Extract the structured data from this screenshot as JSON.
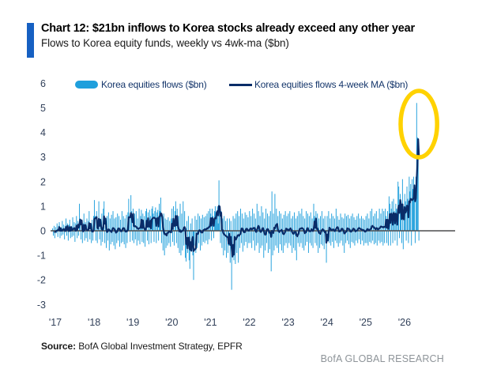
{
  "header": {
    "title": "Chart 12: $21bn inflows to Korea stocks already exceed any other year",
    "subtitle": "Flows to Korea equity funds, weekly vs 4wk-ma ($bn)"
  },
  "legend": {
    "bar": {
      "label": "Korea equities flows ($bn)"
    },
    "line": {
      "label": "Korea equities flows 4-week MA ($bn)"
    }
  },
  "footer": {
    "source_label": "Source:",
    "source_rest": " BofA Global Investment Strategy, EPFR",
    "brand": "BofA GLOBAL RESEARCH"
  },
  "colors": {
    "accent_bar": "#1660C2",
    "bar_blue": "#1F9FDC",
    "ma_navy": "#0A2C68",
    "highlight_yellow": "#FFD200",
    "tick_label": "#32415A",
    "zero_line": "#4D4D4F",
    "legend_text": "#15366B",
    "brand_gray": "#8E9499"
  },
  "chart_data": {
    "type": "bar",
    "title": "Chart 12: $21bn inflows to Korea stocks already exceed any other year",
    "subtitle": "Flows to Korea equity funds, weekly vs 4wk-ma ($bn)",
    "xlabel": "",
    "ylabel": "",
    "ylim": [
      -3,
      6
    ],
    "y_ticks": [
      6,
      5,
      4,
      3,
      2,
      1,
      0,
      -1,
      -2,
      -3
    ],
    "x_tick_labels": [
      "'17",
      "'18",
      "'19",
      "'20",
      "'21",
      "'22",
      "'23",
      "'24",
      "'25",
      "'26"
    ],
    "x_tick_years": [
      2017,
      2018,
      2019,
      2020,
      2021,
      2022,
      2023,
      2024,
      2025,
      2026
    ],
    "grid": false,
    "legend_position": "top",
    "annotation": {
      "shape": "ellipse-highlight",
      "target": "record 2026 weekly inflow spike",
      "center_year": 2026.37,
      "center_value": 4.34,
      "radius_years": 0.47,
      "radius_value": 1.35,
      "peak_weekly_value": 5.2
    },
    "series": [
      {
        "name": "Korea equities flows ($bn)",
        "type": "bar",
        "frequency": "weekly",
        "start_year": 2016.92,
        "step_years": 0.01923,
        "values": [
          0.1,
          -0.2,
          0.2,
          -0.3,
          0.15,
          -0.1,
          0.3,
          -0.25,
          0.2,
          0.35,
          -0.3,
          0.15,
          -0.2,
          0.4,
          -0.15,
          0.25,
          -0.35,
          0.2,
          0.5,
          -0.2,
          0.3,
          -0.4,
          0.25,
          0.45,
          -0.3,
          0.2,
          -0.25,
          0.55,
          -0.2,
          0.35,
          -0.45,
          0.3,
          0.6,
          -0.3,
          0.4,
          -0.2,
          1.1,
          0.5,
          -0.35,
          0.45,
          -0.5,
          0.3,
          0.7,
          -0.4,
          0.35,
          -0.3,
          0.5,
          -0.45,
          0.4,
          0.8,
          -0.35,
          0.3,
          -0.5,
          0.45,
          -0.4,
          0.6,
          1.25,
          0.6,
          -0.4,
          0.8,
          -0.5,
          0.45,
          1.2,
          -0.35,
          0.5,
          -0.6,
          0.7,
          -0.45,
          0.9,
          1.2,
          -0.5,
          0.4,
          -0.7,
          0.6,
          -0.4,
          0.75,
          -0.8,
          0.5,
          -0.55,
          0.65,
          -0.45,
          0.8,
          -0.6,
          0.5,
          -0.75,
          0.55,
          -0.5,
          0.7,
          -0.4,
          0.6,
          -0.65,
          0.45,
          -0.5,
          0.8,
          -0.45,
          0.6,
          -0.55,
          0.5,
          -0.7,
          0.65,
          -0.5,
          0.75,
          1.3,
          0.6,
          -0.45,
          1.45,
          0.8,
          -0.4,
          0.9,
          -0.5,
          0.7,
          -0.35,
          0.8,
          -0.6,
          0.5,
          -0.4,
          0.9,
          -0.55,
          0.6,
          0.85,
          -0.45,
          0.7,
          -0.5,
          0.6,
          -0.65,
          0.8,
          0.9,
          -0.4,
          0.75,
          -0.55,
          0.85,
          0.6,
          -0.5,
          0.9,
          1.0,
          0.7,
          -0.45,
          0.8,
          0.95,
          -0.5,
          0.75,
          0.85,
          -0.4,
          1.1,
          0.8,
          1.35,
          -0.5,
          0.6,
          -0.8,
          0.7,
          -1.0,
          0.5,
          -0.7,
          0.45,
          -0.6,
          0.55,
          -0.5,
          0.4,
          -0.65,
          0.5,
          0.9,
          -0.45,
          1.0,
          -0.6,
          0.8,
          1.2,
          -0.5,
          0.9,
          -0.7,
          0.6,
          -0.9,
          1.1,
          -1.0,
          0.7,
          -0.8,
          1.2,
          -0.6,
          0.8,
          -1.1,
          -1.25,
          0.4,
          -0.9,
          0.6,
          -1.2,
          -1.55,
          0.3,
          -0.8,
          0.5,
          -1.0,
          -2.0,
          -0.6,
          0.6,
          -0.9,
          0.45,
          -0.7,
          0.7,
          -0.5,
          0.6,
          -0.8,
          0.5,
          -0.6,
          0.65,
          -0.45,
          0.55,
          -0.5,
          0.6,
          -0.4,
          0.7,
          -0.55,
          0.8,
          -0.35,
          0.9,
          0.7,
          -0.4,
          0.9,
          0.6,
          -0.3,
          0.8,
          1.0,
          0.5,
          0.7,
          1.0,
          0.3,
          2.05,
          0.6,
          -0.5,
          0.8,
          -0.7,
          0.5,
          -1.0,
          0.6,
          -0.8,
          0.4,
          -1.1,
          0.5,
          -0.9,
          -0.6,
          0.5,
          -1.3,
          0.4,
          -2.4,
          -0.9,
          0.6,
          -1.2,
          0.5,
          -1.35,
          0.7,
          -0.9,
          0.8,
          -1.3,
          0.6,
          -0.7,
          0.9,
          -0.5,
          0.7,
          -0.85,
          0.5,
          -0.6,
          0.75,
          -0.45,
          0.65,
          -0.7,
          0.55,
          -0.5,
          0.8,
          -0.5,
          0.6,
          -0.7,
          0.9,
          -0.4,
          0.7,
          -0.8,
          0.5,
          -0.6,
          1.1,
          -0.5,
          0.8,
          -0.9,
          0.6,
          -0.7,
          1.0,
          -0.6,
          0.75,
          -1.1,
          0.5,
          -0.8,
          0.9,
          -0.5,
          0.7,
          -0.9,
          0.6,
          -0.75,
          0.8,
          -1.65,
          1.6,
          -1.0,
          0.7,
          -0.8,
          1.5,
          -0.6,
          0.9,
          -0.7,
          0.6,
          -0.9,
          0.8,
          -0.55,
          0.7,
          -0.8,
          0.5,
          -0.9,
          0.65,
          -0.6,
          0.8,
          -0.5,
          0.6,
          -0.7,
          0.7,
          -0.5,
          0.8,
          -0.6,
          0.5,
          -0.9,
          0.6,
          -0.7,
          0.75,
          -0.8,
          0.5,
          -1.2,
          0.6,
          -0.5,
          0.8,
          -0.65,
          0.7,
          -0.5,
          0.9,
          -0.7,
          0.6,
          -0.8,
          0.5,
          -0.6,
          0.8,
          -0.45,
          0.7,
          -0.9,
          0.6,
          -0.5,
          0.75,
          -0.6,
          0.5,
          -0.7,
          1.1,
          0.6,
          -0.5,
          0.8,
          -0.6,
          0.7,
          -0.9,
          0.5,
          -0.7,
          0.6,
          -0.55,
          0.8,
          -0.6,
          0.5,
          -0.75,
          0.6,
          -0.5,
          -1.3,
          0.6,
          -0.4,
          0.8,
          -0.5,
          0.5,
          -0.6,
          0.7,
          -0.45,
          0.6,
          -0.7,
          0.5,
          -0.4,
          0.9,
          -0.5,
          0.6,
          -0.65,
          0.45,
          -0.5,
          0.7,
          -0.4,
          0.55,
          -0.6,
          0.5,
          -0.9,
          0.7,
          -0.5,
          0.6,
          -0.4,
          0.65,
          -0.55,
          0.5,
          -0.7,
          0.6,
          -0.45,
          0.7,
          -0.5,
          0.55,
          -0.6,
          0.45,
          -0.4,
          0.6,
          -0.5,
          0.7,
          -0.35,
          0.5,
          -0.55,
          0.6,
          -0.4,
          0.5,
          -0.6,
          0.45,
          -0.5,
          0.6,
          -0.5,
          0.7,
          -0.6,
          0.5,
          -0.45,
          0.8,
          -0.5,
          0.9,
          -0.4,
          0.6,
          -0.55,
          0.7,
          -0.5,
          0.8,
          -0.6,
          0.5,
          -0.4,
          0.9,
          -0.5,
          0.7,
          -0.45,
          0.9,
          -0.6,
          0.8,
          -0.5,
          0.9,
          0.6,
          -0.5,
          0.8,
          -0.6,
          1.4,
          1.1,
          -0.6,
          0.9,
          1.2,
          -0.5,
          1.3,
          0.8,
          -0.4,
          1.1,
          0.9,
          -0.6,
          2.0,
          1.8,
          -0.3,
          1.5,
          1.2,
          -0.5,
          2.1,
          -0.75,
          1.0,
          1.5,
          1.2,
          -0.4,
          1.8,
          1.3,
          -0.5,
          2.2,
          1.6,
          1.9,
          -0.6,
          2.1,
          1.7,
          2.2,
          1.4,
          -0.5,
          2.2,
          5.2,
          3.8,
          3.7,
          -0.4
        ]
      },
      {
        "name": "Korea equities flows 4-week MA ($bn)",
        "type": "line",
        "derived": "4-week rolling mean of the weekly series",
        "peak_value": 3.7
      }
    ]
  }
}
